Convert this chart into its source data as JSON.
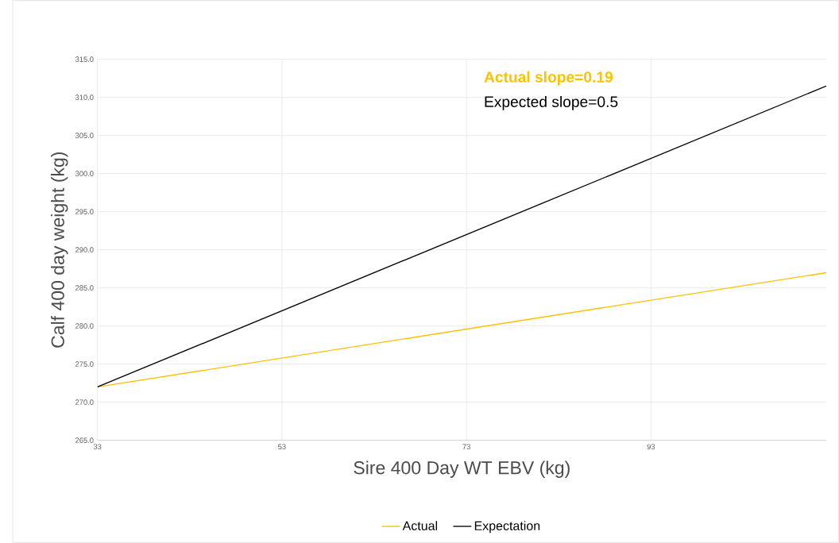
{
  "chart_data": {
    "type": "line",
    "xlabel": "Sire 400 Day WT EBV (kg)",
    "ylabel": "Calf 400 day weight (kg)",
    "series": [
      {
        "name": "Actual",
        "color": "#ffc000",
        "values": [
          272.0,
          287.0
        ]
      },
      {
        "name": "Expectation",
        "color": "#000000",
        "values": [
          272.0,
          311.5
        ]
      }
    ],
    "x": [
      33,
      112
    ],
    "annotations": [
      "Actual slope=0.19",
      "Expected slope=0.5"
    ],
    "xlim": [
      33,
      112
    ],
    "xticks": [
      33,
      53,
      73,
      93
    ],
    "ylim": [
      265,
      315
    ],
    "yticks": [
      {
        "value": 265,
        "label": "265.0"
      },
      {
        "value": 270,
        "label": "270.0"
      },
      {
        "value": 275,
        "label": "275.0"
      },
      {
        "value": 280,
        "label": "280.0"
      },
      {
        "value": 285,
        "label": "285.0"
      },
      {
        "value": 290,
        "label": "290.0"
      },
      {
        "value": 295,
        "label": "295.0"
      },
      {
        "value": 300,
        "label": "300.0"
      },
      {
        "value": 305,
        "label": "305.0"
      },
      {
        "value": 310,
        "label": "310.0"
      },
      {
        "value": 315,
        "label": "315.0"
      }
    ],
    "grid": true,
    "legend": "bottom",
    "marker": "none",
    "line_style": "solid"
  }
}
